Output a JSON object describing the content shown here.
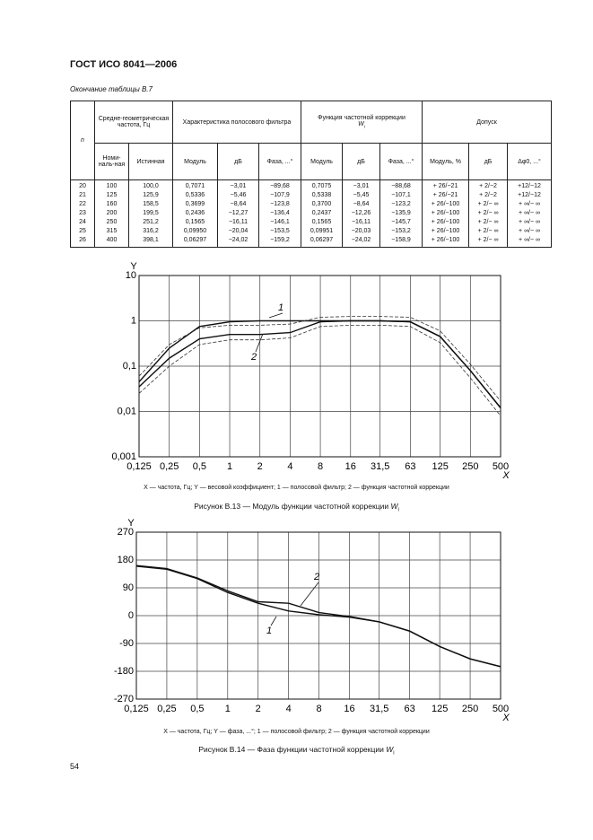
{
  "header": {
    "title": "ГОСТ ИСО 8041—2006"
  },
  "table": {
    "caption": "Окончание таблицы В.7",
    "head": {
      "n": "n",
      "freq": "Средне-геометрическая частота, Гц",
      "nominal": "Номи-наль-ная",
      "true": "Истинная",
      "filter": "Характеристика полосового фильтра",
      "correction": {
        "text": "Функция частотной коррекции",
        "symbol": "W",
        "subscript": "i"
      },
      "tolerance": "Допуск",
      "sub": [
        "Модуль",
        "дБ",
        "Фаза, ...°",
        "Модуль",
        "дБ",
        "Фаза, ...°",
        "Модуль, %",
        "дБ",
        "Δφ0, ...°"
      ]
    },
    "rows": [
      [
        "20",
        "100",
        "100,0",
        "0,7071",
        "−3,01",
        "−89,68",
        "0,7075",
        "−3,01",
        "−88,68",
        "+ 26/−21",
        "+ 2/−2",
        "+12/−12"
      ],
      [
        "21",
        "125",
        "125,9",
        "0,5336",
        "−5,46",
        "−107,9",
        "0,5338",
        "−5,45",
        "−107,1",
        "+ 26/−21",
        "+ 2/−2",
        "+12/−12"
      ],
      [
        "22",
        "160",
        "158,5",
        "0,3699",
        "−8,64",
        "−123,8",
        "0,3700",
        "−8,64",
        "−123,2",
        "+ 26/−100",
        "+ 2/− ∞",
        "+ ∞/− ∞"
      ],
      [
        "23",
        "200",
        "199,5",
        "0,2436",
        "−12,27",
        "−136,4",
        "0,2437",
        "−12,26",
        "−135,9",
        "+ 26/−100",
        "+ 2/− ∞",
        "+ ∞/− ∞"
      ],
      [
        "24",
        "250",
        "251,2",
        "0,1565",
        "−16,11",
        "−146,1",
        "0,1565",
        "−16,11",
        "−145,7",
        "+ 26/−100",
        "+ 2/− ∞",
        "+ ∞/− ∞"
      ],
      [
        "25",
        "315",
        "316,2",
        "0,09950",
        "−20,04",
        "−153,5",
        "0,09951",
        "−20,03",
        "−153,2",
        "+ 26/−100",
        "+ 2/− ∞",
        "+ ∞/− ∞"
      ],
      [
        "26",
        "400",
        "398,1",
        "0,06297",
        "−24,02",
        "−159,2",
        "0,06297",
        "−24,02",
        "−158,9",
        "+ 26/−100",
        "+ 2/− ∞",
        "+ ∞/− ∞"
      ]
    ]
  },
  "chart_data": [
    {
      "type": "line",
      "x_label": "X",
      "y_label": "Y",
      "xscale": "log",
      "yscale": "log",
      "grid": true,
      "xlim": [
        0.125,
        500
      ],
      "xticks": [
        {
          "value": 0.125,
          "label": "0,125"
        },
        {
          "value": 0.25,
          "label": "0,25"
        },
        {
          "value": 0.5,
          "label": "0,5"
        },
        1,
        2,
        4,
        8,
        16,
        {
          "value": 31.5,
          "label": "31,5"
        },
        63,
        125,
        250,
        500
      ],
      "ylim": [
        0.001,
        10
      ],
      "yticks": [
        {
          "value": 0.001,
          "label": "0,001"
        },
        {
          "value": 0.01,
          "label": "0,01"
        },
        {
          "value": 0.1,
          "label": "0,1"
        },
        1,
        10
      ],
      "x": [
        0.125,
        0.25,
        0.5,
        1,
        2,
        4,
        8,
        16,
        31.5,
        63,
        125,
        250,
        500
      ],
      "series": [
        {
          "name": "1",
          "color": "#111111",
          "style": "solid",
          "values": [
            0.045,
            0.25,
            0.75,
            0.95,
            1,
            1,
            1,
            1,
            1,
            0.95,
            0.45,
            0.08,
            0.012
          ]
        },
        {
          "name": "2",
          "color": "#111111",
          "style": "solid",
          "values": [
            0.035,
            0.15,
            0.4,
            0.5,
            0.5,
            0.55,
            0.95,
            1,
            1,
            0.95,
            0.45,
            0.08,
            0.012
          ]
        },
        {
          "color": "#333333",
          "style": "dashed",
          "values": [
            0.06,
            0.3,
            0.7,
            0.8,
            0.8,
            0.85,
            1.2,
            1.25,
            1.25,
            1.2,
            0.6,
            0.11,
            0.017
          ]
        },
        {
          "color": "#333333",
          "style": "dashed",
          "values": [
            0.025,
            0.1,
            0.3,
            0.38,
            0.38,
            0.42,
            0.75,
            0.8,
            0.8,
            0.75,
            0.33,
            0.055,
            0.008
          ]
        }
      ]
    },
    {
      "type": "line",
      "x_label": "X",
      "y_label": "Y",
      "xscale": "log",
      "grid": true,
      "xlim": [
        0.125,
        500
      ],
      "xticks": [
        {
          "value": 0.125,
          "label": "0,125"
        },
        {
          "value": 0.25,
          "label": "0,25"
        },
        {
          "value": 0.5,
          "label": "0,5"
        },
        1,
        2,
        4,
        8,
        16,
        {
          "value": 31.5,
          "label": "31,5"
        },
        63,
        125,
        250,
        500
      ],
      "ylim": [
        -270,
        270
      ],
      "yticks": [
        -270,
        -180,
        -90,
        0,
        90,
        180,
        270
      ],
      "x": [
        0.125,
        0.25,
        0.5,
        1,
        2,
        4,
        8,
        16,
        31.5,
        63,
        125,
        250,
        500
      ],
      "series": [
        {
          "name": "1",
          "color": "#111111",
          "style": "solid",
          "values": [
            160,
            150,
            120,
            75,
            40,
            15,
            3,
            -5,
            -20,
            -50,
            -100,
            -140,
            -165
          ]
        },
        {
          "name": "2",
          "color": "#111111",
          "style": "solid",
          "values": [
            162,
            152,
            122,
            80,
            45,
            40,
            10,
            -3,
            -20,
            -50,
            -100,
            -140,
            -165
          ]
        }
      ]
    }
  ],
  "figures": [
    {
      "legend": "X — частота, Гц; Y — весовой коэффициент; 1 — полосовой фильтр; 2 — функция частотной коррекции",
      "caption": "Рисунок В.13 — Модуль функции частотной коррекции",
      "symbol": "W",
      "subscript": "i"
    },
    {
      "legend": "X — частота, Гц; Y — фаза, ...°; 1 — полосовой фильтр; 2 — функция частотной коррекции",
      "caption": "Рисунок В.14 — Фаза функции частотной коррекции",
      "symbol": "W",
      "subscript": "i"
    }
  ],
  "page_number": "54"
}
